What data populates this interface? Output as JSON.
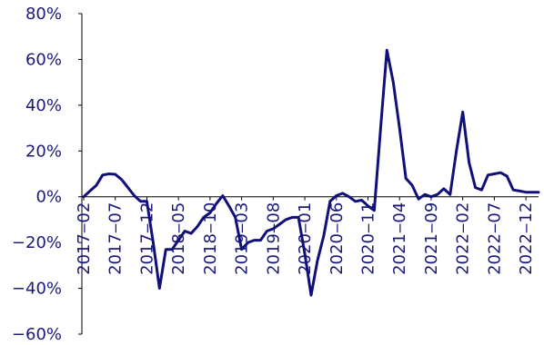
{
  "chart_data": {
    "type": "line",
    "title": "",
    "xlabel": "",
    "ylabel": "",
    "ylim": [
      -60,
      80
    ],
    "y_ticks": [
      80,
      60,
      40,
      20,
      0,
      -20,
      -40,
      -60
    ],
    "y_tick_labels": [
      "80%",
      "60%",
      "40%",
      "20%",
      "0%",
      "−20%",
      "−40%",
      "−60%"
    ],
    "x_tick_labels": [
      "2017‒02",
      "2017‒07",
      "2017‒12",
      "2018‒05",
      "2018‒10",
      "2019‒03",
      "2019‒08",
      "2020‒01",
      "2020‒06",
      "2020‒11",
      "2021‒04",
      "2021‒09",
      "2022‒02",
      "2022‒07",
      "2022‒12"
    ],
    "grid": false,
    "legend": "none",
    "line_color": "#10107a",
    "series": [
      {
        "values": [
          0,
          2.5,
          5,
          9.5,
          10,
          9.8,
          7.5,
          4,
          0.5,
          -2,
          -2,
          -20,
          -40,
          -23,
          -23,
          -19,
          -15,
          -16,
          -13,
          -9,
          -7,
          -3,
          0.5,
          -4,
          -9,
          -23,
          -20,
          -19,
          -19,
          -15,
          -14,
          -12,
          -10,
          -9,
          -9,
          -25,
          -43,
          -28,
          -17,
          -2,
          0.5,
          1.5,
          0,
          -2,
          -1.5,
          -4,
          -6,
          30,
          64,
          50,
          30,
          8,
          5,
          -1,
          1,
          0,
          1,
          3.5,
          1,
          20,
          37,
          15,
          4,
          3,
          9.5,
          10,
          10.5,
          9,
          3,
          2.5,
          2,
          2,
          2
        ]
      }
    ]
  }
}
